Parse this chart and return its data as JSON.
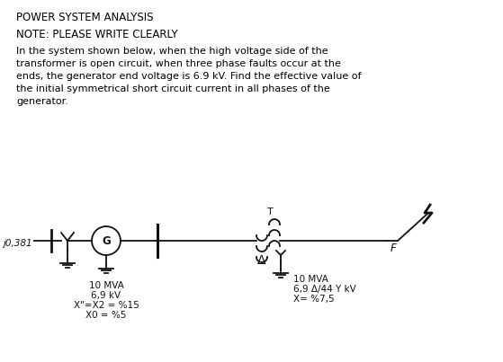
{
  "title": "POWER SYSTEM ANALYSIS",
  "note": "NOTE: PLEASE WRITE CLEARLY",
  "body_text": "In the system shown below, when the high voltage side of the\ntransformer is open circuit, when three phase faults occur at the\nends, the generator end voltage is 6.9 kV. Find the effective value of\nthe initial symmetrical short circuit current in all phases of the\ngenerator.",
  "label_j0381": "j0,381",
  "label_gen1": "10 MVA",
  "label_gen2": "6,9 kV",
  "label_gen3": "X\"=X2 = %15",
  "label_gen4": "X0 = %5",
  "label_T": "T",
  "label_F": "F",
  "label_tr1": "10 MVA",
  "label_tr2": "6,9 Δ/44 Y kV",
  "label_tr3": "X= %7,5",
  "bg_color": "#ffffff",
  "text_color": "#000000",
  "diagram_color": "#111111",
  "fig_w": 5.59,
  "fig_h": 4.03,
  "dpi": 100
}
